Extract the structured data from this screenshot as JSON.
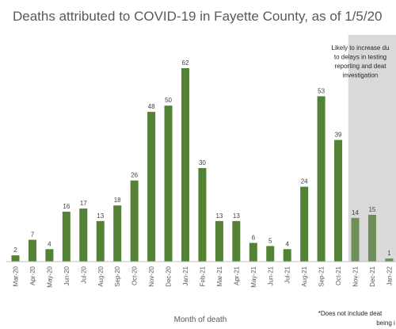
{
  "chart_data": {
    "type": "bar",
    "title": "Deaths attributed to COVID-19 in Fayette County, as of 1/5/20",
    "xlabel": "Month of death",
    "ylabel": "",
    "categories": [
      "Mar-20",
      "Apr-20",
      "May-20",
      "Jun-20",
      "Jul-20",
      "Aug-20",
      "Sep-20",
      "Oct-20",
      "Nov-20",
      "Dec-20",
      "Jan-21",
      "Feb-21",
      "Mar-21",
      "Apr-21",
      "May-21",
      "Jun-21",
      "Jul-21",
      "Aug-21",
      "Sep-21",
      "Oct-21",
      "Nov-21",
      "Dec-21",
      "Jan-22"
    ],
    "values": [
      2,
      7,
      4,
      16,
      17,
      13,
      18,
      26,
      48,
      50,
      62,
      30,
      13,
      13,
      6,
      5,
      4,
      24,
      53,
      39,
      14,
      15,
      1
    ],
    "series": [
      {
        "values": [
          2,
          7,
          4,
          16,
          17,
          13,
          18,
          26,
          48,
          50,
          62,
          30,
          13,
          13,
          6,
          5,
          4,
          24,
          53,
          39,
          14,
          15,
          1
        ]
      }
    ],
    "ylim": [
      0,
      64
    ],
    "grid": false,
    "shaded_from_category": "Nov-21",
    "annotation_lines": [
      "Likely to increase du",
      "to delays in testing",
      "reporting and deat",
      "investigation"
    ],
    "footnote_lines": [
      "*Does not include deat",
      "being i"
    ],
    "colors": {
      "bar": "#548235",
      "bar_shaded": "#6f8f5a",
      "shade": "#d9d9d9",
      "text": "#595959",
      "axis": "#bfbfbf"
    }
  }
}
